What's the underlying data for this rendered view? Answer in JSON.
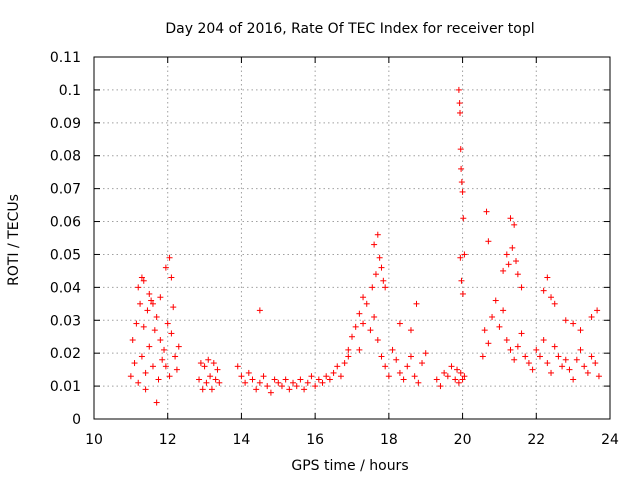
{
  "chart_data": {
    "type": "scatter",
    "title": "Day 204 of 2016, Rate Of TEC Index for receiver topl",
    "xlabel": "GPS time / hours",
    "ylabel": "ROTI / TECUs",
    "xlim": [
      10,
      24
    ],
    "ylim": [
      0,
      0.11
    ],
    "xticks": [
      "10",
      "12",
      "14",
      "16",
      "18",
      "20",
      "22",
      "24"
    ],
    "yticks": [
      "0",
      "0.01",
      "0.02",
      "0.03",
      "0.04",
      "0.05",
      "0.06",
      "0.07",
      "0.08",
      "0.09",
      "0.1",
      "0.11"
    ],
    "grid": true,
    "marker": "+",
    "series": [
      {
        "name": "ROTI",
        "color": "#ff0000",
        "x": [
          11.0,
          11.05,
          11.1,
          11.15,
          11.2,
          11.25,
          11.3,
          11.35,
          11.4,
          11.45,
          11.5,
          11.55,
          11.6,
          11.65,
          11.7,
          11.75,
          11.8,
          11.85,
          11.9,
          11.95,
          12.0,
          12.05,
          12.1,
          12.15,
          12.2,
          12.25,
          12.3,
          12.85,
          12.9,
          12.95,
          13.0,
          13.05,
          13.1,
          13.15,
          13.2,
          13.25,
          13.3,
          13.35,
          13.4,
          13.9,
          14.0,
          14.1,
          14.2,
          14.3,
          14.4,
          14.5,
          14.6,
          14.7,
          14.8,
          14.9,
          15.0,
          15.1,
          15.2,
          15.3,
          15.4,
          15.5,
          15.6,
          15.7,
          15.8,
          15.9,
          16.0,
          16.1,
          16.2,
          16.3,
          16.4,
          16.5,
          16.6,
          16.7,
          16.8,
          16.9,
          17.0,
          17.1,
          17.2,
          17.3,
          17.4,
          17.5,
          17.6,
          17.7,
          17.8,
          17.9,
          18.0,
          18.1,
          18.2,
          18.3,
          18.4,
          18.5,
          18.6,
          18.7,
          18.8,
          18.9,
          19.3,
          19.4,
          19.5,
          19.6,
          19.7,
          19.8,
          19.85,
          19.9,
          19.95,
          20.0,
          20.05,
          20.55,
          20.6,
          20.7,
          20.8,
          20.9,
          21.0,
          21.1,
          21.2,
          21.3,
          21.4,
          21.5,
          21.6,
          21.7,
          21.8,
          21.9,
          22.0,
          22.1,
          22.2,
          22.3,
          22.4,
          22.5,
          22.6,
          22.7,
          22.8,
          22.9,
          23.0,
          23.1,
          23.2,
          23.3,
          23.4,
          23.5,
          23.6,
          23.7,
          11.3,
          11.35,
          11.5,
          11.8,
          11.95,
          12.05,
          11.2,
          11.6,
          12.1,
          11.4,
          11.7,
          19.9,
          19.92,
          19.93,
          19.95,
          19.96,
          19.98,
          20.0,
          20.02,
          20.05,
          19.94,
          19.97,
          20.01,
          17.6,
          17.7,
          17.75,
          17.8,
          17.85,
          17.9,
          17.55,
          17.65,
          20.65,
          20.7,
          21.1,
          21.3,
          21.35,
          21.4,
          21.45,
          21.2,
          21.25,
          21.5,
          21.6,
          22.2,
          22.3,
          22.4,
          22.5,
          22.8,
          23.0,
          23.2,
          23.5,
          23.65,
          14.5,
          16.9,
          17.2,
          17.3,
          18.3,
          18.6,
          18.75,
          19.0
        ],
        "y": [
          0.013,
          0.024,
          0.017,
          0.029,
          0.011,
          0.035,
          0.019,
          0.028,
          0.014,
          0.033,
          0.022,
          0.036,
          0.016,
          0.027,
          0.031,
          0.012,
          0.024,
          0.018,
          0.021,
          0.016,
          0.029,
          0.013,
          0.026,
          0.034,
          0.019,
          0.015,
          0.022,
          0.012,
          0.017,
          0.009,
          0.016,
          0.011,
          0.018,
          0.013,
          0.009,
          0.017,
          0.012,
          0.015,
          0.011,
          0.016,
          0.013,
          0.011,
          0.014,
          0.012,
          0.009,
          0.011,
          0.013,
          0.01,
          0.008,
          0.012,
          0.011,
          0.01,
          0.012,
          0.009,
          0.011,
          0.01,
          0.012,
          0.009,
          0.011,
          0.013,
          0.01,
          0.012,
          0.011,
          0.013,
          0.012,
          0.014,
          0.016,
          0.013,
          0.017,
          0.021,
          0.025,
          0.028,
          0.032,
          0.029,
          0.035,
          0.027,
          0.031,
          0.024,
          0.019,
          0.016,
          0.013,
          0.021,
          0.018,
          0.014,
          0.012,
          0.016,
          0.019,
          0.013,
          0.011,
          0.017,
          0.012,
          0.01,
          0.014,
          0.013,
          0.016,
          0.012,
          0.015,
          0.011,
          0.014,
          0.012,
          0.013,
          0.019,
          0.027,
          0.023,
          0.031,
          0.036,
          0.028,
          0.033,
          0.024,
          0.021,
          0.018,
          0.022,
          0.026,
          0.019,
          0.017,
          0.015,
          0.021,
          0.019,
          0.024,
          0.017,
          0.014,
          0.022,
          0.019,
          0.016,
          0.018,
          0.015,
          0.012,
          0.018,
          0.021,
          0.016,
          0.014,
          0.019,
          0.017,
          0.013,
          0.043,
          0.042,
          0.038,
          0.037,
          0.046,
          0.049,
          0.04,
          0.035,
          0.043,
          0.009,
          0.005,
          0.1,
          0.096,
          0.093,
          0.082,
          0.076,
          0.072,
          0.069,
          0.061,
          0.05,
          0.049,
          0.042,
          0.038,
          0.053,
          0.056,
          0.049,
          0.046,
          0.042,
          0.04,
          0.04,
          0.044,
          0.063,
          0.054,
          0.045,
          0.061,
          0.052,
          0.059,
          0.048,
          0.05,
          0.047,
          0.044,
          0.04,
          0.039,
          0.043,
          0.037,
          0.035,
          0.03,
          0.029,
          0.027,
          0.031,
          0.033,
          0.033,
          0.019,
          0.021,
          0.037,
          0.029,
          0.027,
          0.035,
          0.02
        ]
      }
    ]
  }
}
